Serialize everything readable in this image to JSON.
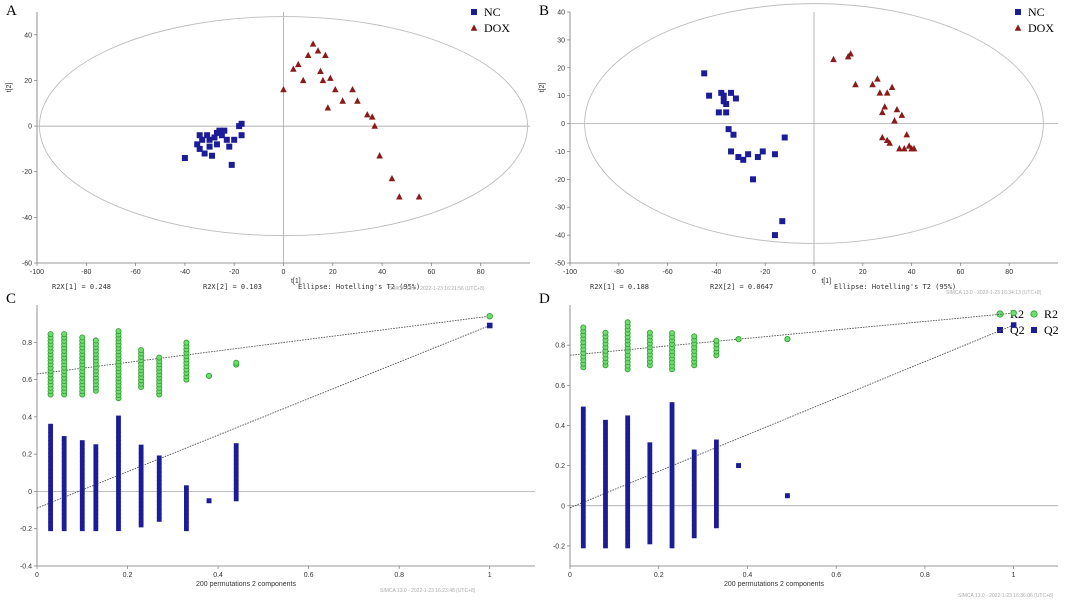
{
  "chart_data": [
    {
      "panel": "A",
      "type": "scatter",
      "xlabel": "t[1]",
      "ylabel": "t[2]",
      "xlim": [
        -100,
        100
      ],
      "ylim": [
        -60,
        50
      ],
      "xticks": [
        -100,
        -80,
        -60,
        -40,
        -20,
        0,
        20,
        40,
        60,
        80
      ],
      "yticks": [
        -60,
        -40,
        -20,
        0,
        20,
        40
      ],
      "ellipse": {
        "cx": 0,
        "cy": 0,
        "rx": 99,
        "ry": 48
      },
      "info": {
        "left": "R2X[1] = 0.248",
        "mid": "R2X[2] = 0.103",
        "right": "Ellipse: Hotelling's T2 (95%)"
      },
      "stamp": "SIMCA 13.0 - 2022-1-23 16:21:56 (UTC+8)",
      "series": [
        {
          "name": "NC",
          "marker": "square",
          "color": "#1c1c99",
          "points": [
            [
              -40,
              -14
            ],
            [
              -35,
              -8
            ],
            [
              -34,
              -10
            ],
            [
              -34,
              -4
            ],
            [
              -33,
              -6
            ],
            [
              -32,
              -12
            ],
            [
              -31,
              -4
            ],
            [
              -30,
              -9
            ],
            [
              -30,
              -6
            ],
            [
              -29,
              -13
            ],
            [
              -28,
              -5
            ],
            [
              -27,
              -8
            ],
            [
              -26,
              -2
            ],
            [
              -25,
              -4
            ],
            [
              -24,
              -2
            ],
            [
              -23,
              -6
            ],
            [
              -22,
              -9
            ],
            [
              -21,
              -17
            ],
            [
              -20,
              -6
            ],
            [
              -18,
              0
            ],
            [
              -17,
              -4
            ],
            [
              -17,
              1
            ],
            [
              -27,
              -3
            ]
          ]
        },
        {
          "name": "DOX",
          "marker": "triangle",
          "color": "#8b1a1a",
          "points": [
            [
              0,
              16
            ],
            [
              4,
              25
            ],
            [
              6,
              27
            ],
            [
              8,
              20
            ],
            [
              10,
              31
            ],
            [
              12,
              36
            ],
            [
              14,
              33
            ],
            [
              15,
              24
            ],
            [
              16,
              20
            ],
            [
              17,
              31
            ],
            [
              18,
              8
            ],
            [
              19,
              21
            ],
            [
              21,
              16
            ],
            [
              24,
              11
            ],
            [
              28,
              16
            ],
            [
              30,
              11
            ],
            [
              34,
              5
            ],
            [
              36,
              4
            ],
            [
              37,
              0
            ],
            [
              39,
              -13
            ],
            [
              44,
              -23
            ],
            [
              47,
              -31
            ],
            [
              55,
              -31
            ]
          ]
        }
      ]
    },
    {
      "panel": "B",
      "type": "scatter",
      "xlabel": "t[1]",
      "ylabel": "t[2]",
      "xlim": [
        -100,
        100
      ],
      "ylim": [
        -50,
        40
      ],
      "xticks": [
        -100,
        -80,
        -60,
        -40,
        -20,
        0,
        20,
        40,
        60,
        80
      ],
      "yticks": [
        -50,
        -40,
        -30,
        -20,
        -10,
        0,
        10,
        20,
        30,
        40
      ],
      "ellipse": {
        "cx": 0,
        "cy": 0,
        "rx": 94,
        "ry": 43
      },
      "info": {
        "left": "R2X[1] = 0.188",
        "mid": "R2X[2] = 0.0647",
        "right": "Ellipse: Hotelling's T2 (95%)"
      },
      "stamp": "SIMCA 13.0 - 2022-1-23 16:34:13 (UTC+8)",
      "series": [
        {
          "name": "NC",
          "marker": "square",
          "color": "#1c1c99",
          "points": [
            [
              -45,
              18
            ],
            [
              -43,
              10
            ],
            [
              -39,
              4
            ],
            [
              -38,
              11
            ],
            [
              -37,
              10
            ],
            [
              -37,
              8
            ],
            [
              -36,
              7
            ],
            [
              -36,
              4
            ],
            [
              -35,
              -2
            ],
            [
              -34,
              11
            ],
            [
              -34,
              -10
            ],
            [
              -33,
              -4
            ],
            [
              -31,
              -12
            ],
            [
              -29,
              -13
            ],
            [
              -27,
              -11
            ],
            [
              -25,
              -20
            ],
            [
              -23,
              -12
            ],
            [
              -21,
              -10
            ],
            [
              -16,
              -40
            ],
            [
              -16,
              -11
            ],
            [
              -13,
              -35
            ],
            [
              -12,
              -5
            ],
            [
              -32,
              9
            ]
          ]
        },
        {
          "name": "DOX",
          "marker": "triangle",
          "color": "#8b1a1a",
          "points": [
            [
              8,
              23
            ],
            [
              14,
              24
            ],
            [
              15,
              25
            ],
            [
              17,
              14
            ],
            [
              24,
              14
            ],
            [
              26,
              16
            ],
            [
              27,
              11
            ],
            [
              28,
              4
            ],
            [
              29,
              6
            ],
            [
              30,
              11
            ],
            [
              30,
              -6
            ],
            [
              31,
              -7
            ],
            [
              32,
              13
            ],
            [
              33,
              1
            ],
            [
              34,
              5
            ],
            [
              35,
              -9
            ],
            [
              36,
              3
            ],
            [
              37,
              -9
            ],
            [
              38,
              -4
            ],
            [
              39,
              -8
            ],
            [
              40,
              -9
            ],
            [
              41,
              -9
            ],
            [
              28,
              -5
            ]
          ]
        }
      ]
    },
    {
      "panel": "C",
      "type": "scatter",
      "xlabel": "200 permutations 2 components",
      "xlim": [
        0,
        1.1
      ],
      "ylim": [
        -0.4,
        1.0
      ],
      "xticks": [
        0,
        0.2,
        0.4,
        0.6,
        0.8,
        1
      ],
      "yticks": [
        -0.4,
        -0.2,
        0,
        0.2,
        0.4,
        0.6,
        0.8
      ],
      "stamp": "SIMCA 13.0 - 2022-1-23 16:23:48 (UTC+8)",
      "lines": {
        "R2": [
          [
            0,
            0.63
          ],
          [
            1,
            0.94
          ]
        ],
        "Q2": [
          [
            0,
            -0.09
          ],
          [
            1,
            0.89
          ]
        ]
      },
      "series": [
        {
          "name": "R2",
          "marker": "circle",
          "color": "#2e9e2e",
          "cols": [
            [
              0.03,
              0.52,
              0.85
            ],
            [
              0.06,
              0.52,
              0.85
            ],
            [
              0.1,
              0.52,
              0.83
            ],
            [
              0.13,
              0.54,
              0.82
            ],
            [
              0.18,
              0.5,
              0.86
            ],
            [
              0.23,
              0.56,
              0.76
            ],
            [
              0.27,
              0.52,
              0.72
            ],
            [
              0.33,
              0.6,
              0.81
            ],
            [
              0.38,
              0.62,
              0.62
            ],
            [
              0.44,
              0.68,
              0.69
            ]
          ],
          "points": [
            [
              1,
              0.94
            ]
          ]
        },
        {
          "name": "Q2",
          "marker": "square",
          "color": "#1c1c99",
          "cols": [
            [
              0.03,
              -0.2,
              0.37
            ],
            [
              0.06,
              -0.2,
              0.3
            ],
            [
              0.1,
              -0.2,
              0.27
            ],
            [
              0.13,
              -0.2,
              0.26
            ],
            [
              0.18,
              -0.2,
              0.4
            ],
            [
              0.23,
              -0.18,
              0.25
            ],
            [
              0.27,
              -0.15,
              0.2
            ],
            [
              0.33,
              -0.2,
              0.03
            ],
            [
              0.38,
              -0.05,
              -0.05
            ],
            [
              0.44,
              -0.04,
              0.26
            ]
          ],
          "points": [
            [
              1,
              0.89
            ]
          ]
        }
      ]
    },
    {
      "panel": "D",
      "type": "scatter",
      "xlabel": "200 permutations 2 components",
      "xlim": [
        0,
        1.1
      ],
      "ylim": [
        -0.3,
        1.0
      ],
      "xticks": [
        0,
        0.2,
        0.4,
        0.6,
        0.8,
        1
      ],
      "yticks": [
        -0.2,
        0,
        0.2,
        0.4,
        0.6,
        0.8
      ],
      "stamp": "SIMCA 13.0 - 2022-1-23 16:36:06 (UTC+8)",
      "lines": {
        "R2": [
          [
            0,
            0.75
          ],
          [
            1,
            0.96
          ]
        ],
        "Q2": [
          [
            0,
            -0.01
          ],
          [
            1,
            0.9
          ]
        ]
      },
      "series": [
        {
          "name": "R2",
          "marker": "circle",
          "color": "#2e9e2e",
          "cols": [
            [
              0.03,
              0.69,
              0.9
            ],
            [
              0.08,
              0.7,
              0.87
            ],
            [
              0.13,
              0.68,
              0.92
            ],
            [
              0.18,
              0.7,
              0.87
            ],
            [
              0.23,
              0.68,
              0.86
            ],
            [
              0.28,
              0.7,
              0.86
            ],
            [
              0.33,
              0.75,
              0.83
            ],
            [
              0.38,
              0.83,
              0.83
            ],
            [
              0.49,
              0.83,
              0.83
            ]
          ],
          "points": [
            [
              1,
              0.96
            ]
          ]
        },
        {
          "name": "Q2",
          "marker": "square",
          "color": "#1c1c99",
          "cols": [
            [
              0.03,
              -0.2,
              0.49
            ],
            [
              0.08,
              -0.2,
              0.42
            ],
            [
              0.13,
              -0.2,
              0.45
            ],
            [
              0.18,
              -0.18,
              0.32
            ],
            [
              0.23,
              -0.2,
              0.52
            ],
            [
              0.28,
              -0.15,
              0.28
            ],
            [
              0.33,
              -0.1,
              0.33
            ],
            [
              0.38,
              0.2,
              0.2
            ],
            [
              0.49,
              0.05,
              0.05
            ]
          ],
          "points": [
            [
              1,
              0.9
            ]
          ]
        }
      ]
    }
  ]
}
